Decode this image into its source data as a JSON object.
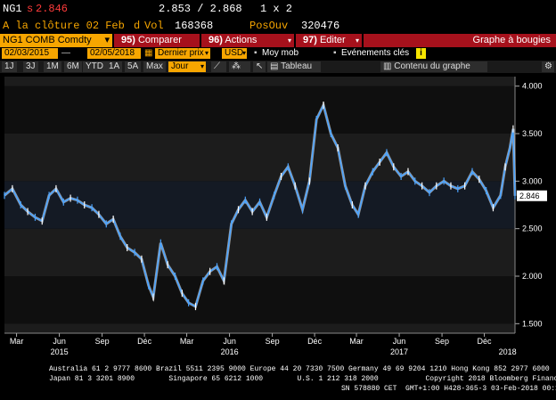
{
  "header": {
    "ticker": "NG1",
    "arrow": "s",
    "last": "2.846",
    "bid_ask": "2.853 / 2.868",
    "size": "1 x 2",
    "close_label": "A la clôture 02 Feb",
    "close_flag": "d",
    "vol_label": "Vol",
    "vol_value": "168368",
    "oi_label": "PosOuv",
    "oi_value": "320476"
  },
  "cmdbar": {
    "security": "NG1 COMB Comdty",
    "security_arrow": "▾",
    "compare_num": "95)",
    "compare_label": "Comparer",
    "actions_num": "96)",
    "actions_label": "Actions",
    "edit_num": "97)",
    "edit_label": "Editer",
    "chart_type": "Graphe à bougies"
  },
  "daterow": {
    "start_date": "02/03/2015",
    "end_date": "02/05/2018",
    "price_field": "Dernier prix",
    "currency": "USD",
    "moving_avg": "Moy mob",
    "events": "Evénements clés",
    "info_icon": "i"
  },
  "tabs": {
    "periods": [
      "1J",
      "3J",
      "1M",
      "6M",
      "YTD",
      "1A",
      "5A",
      "Max"
    ],
    "frequency": "Jour",
    "table": "Tableau",
    "content": "Contenu du graphe"
  },
  "chart_data": {
    "type": "line",
    "title": "",
    "xlabel": "",
    "ylabel": "",
    "ylim": [
      1.4,
      4.1
    ],
    "y_ticks": [
      1.5,
      2.0,
      2.5,
      3.0,
      3.5,
      4.0
    ],
    "y_tick_labels": [
      "1.500",
      "2.000",
      "2.500",
      "3.000",
      "3.500",
      "4.000"
    ],
    "xlim": [
      "2015-02-03",
      "2018-02-05"
    ],
    "x_ticks": [
      {
        "date": "2015-03-01",
        "label": "Mar"
      },
      {
        "date": "2015-06-01",
        "label": "Jun"
      },
      {
        "date": "2015-09-01",
        "label": "Sep"
      },
      {
        "date": "2015-12-01",
        "label": "Déc"
      },
      {
        "date": "2016-03-01",
        "label": "Mar"
      },
      {
        "date": "2016-06-01",
        "label": "Jun"
      },
      {
        "date": "2016-09-01",
        "label": "Sep"
      },
      {
        "date": "2016-12-01",
        "label": "Déc"
      },
      {
        "date": "2017-03-01",
        "label": "Mar"
      },
      {
        "date": "2017-06-01",
        "label": "Jun"
      },
      {
        "date": "2017-09-01",
        "label": "Sep"
      },
      {
        "date": "2017-12-01",
        "label": "Déc"
      }
    ],
    "year_labels": [
      {
        "date": "2015-06-01",
        "label": "2015"
      },
      {
        "date": "2016-06-01",
        "label": "2016"
      },
      {
        "date": "2017-06-01",
        "label": "2017"
      },
      {
        "date": "2018-01-20",
        "label": "2018"
      }
    ],
    "last_value": 2.846,
    "last_value_label": "2.846",
    "series": [
      {
        "x": [
          "2015-02-03",
          "2015-02-20",
          "2015-03-10",
          "2015-03-25",
          "2015-04-10",
          "2015-04-25",
          "2015-05-10",
          "2015-05-25",
          "2015-06-10",
          "2015-06-25",
          "2015-07-10",
          "2015-07-25",
          "2015-08-10",
          "2015-08-25",
          "2015-09-10",
          "2015-09-25",
          "2015-10-10",
          "2015-10-25",
          "2015-11-10",
          "2015-11-25",
          "2015-12-10",
          "2015-12-20",
          "2016-01-05",
          "2016-01-20",
          "2016-02-05",
          "2016-02-20",
          "2016-03-05",
          "2016-03-20",
          "2016-04-05",
          "2016-04-20",
          "2016-05-05",
          "2016-05-20",
          "2016-06-05",
          "2016-06-20",
          "2016-07-05",
          "2016-07-20",
          "2016-08-05",
          "2016-08-20",
          "2016-09-05",
          "2016-09-20",
          "2016-10-05",
          "2016-10-20",
          "2016-11-05",
          "2016-11-20",
          "2016-12-05",
          "2016-12-20",
          "2017-01-05",
          "2017-01-20",
          "2017-02-05",
          "2017-02-20",
          "2017-03-05",
          "2017-03-20",
          "2017-04-05",
          "2017-04-20",
          "2017-05-05",
          "2017-05-20",
          "2017-06-05",
          "2017-06-20",
          "2017-07-05",
          "2017-07-20",
          "2017-08-05",
          "2017-08-20",
          "2017-09-05",
          "2017-09-20",
          "2017-10-05",
          "2017-10-20",
          "2017-11-05",
          "2017-11-20",
          "2017-12-05",
          "2017-12-20",
          "2018-01-05",
          "2018-01-15",
          "2018-01-25",
          "2018-02-01",
          "2018-02-05"
        ],
        "values": [
          2.85,
          2.92,
          2.75,
          2.68,
          2.62,
          2.58,
          2.85,
          2.92,
          2.78,
          2.82,
          2.8,
          2.75,
          2.72,
          2.65,
          2.55,
          2.6,
          2.42,
          2.3,
          2.25,
          2.18,
          1.9,
          1.78,
          2.35,
          2.12,
          2.0,
          1.82,
          1.72,
          1.68,
          1.95,
          2.05,
          2.1,
          1.95,
          2.55,
          2.7,
          2.8,
          2.68,
          2.78,
          2.62,
          2.85,
          3.05,
          3.15,
          2.95,
          2.7,
          3.0,
          3.65,
          3.8,
          3.5,
          3.35,
          2.95,
          2.75,
          2.65,
          2.95,
          3.1,
          3.2,
          3.3,
          3.15,
          3.05,
          3.1,
          3.0,
          2.95,
          2.88,
          2.95,
          3.0,
          2.95,
          2.92,
          2.95,
          3.1,
          3.02,
          2.9,
          2.72,
          2.85,
          3.15,
          3.35,
          3.55,
          2.846
        ]
      }
    ]
  },
  "footer": {
    "line1": "Australia 61 2 9777 8600 Brazil 5511 2395 9000 Europe 44 20 7330 7500 Germany 49 69 9204 1210 Hong Kong 852 2977 6000",
    "line2": "Japan 81 3 3201 8900        Singapore 65 6212 1000        U.S. 1 212 318 2000           Copyright 2018 Bloomberg Finance L.P.",
    "line3": "SN 578880 CET  GMT+1:00 H428-365-3 03-Feb-2018 00:15:04"
  },
  "colors": {
    "accent": "#f7a600",
    "bar_red": "#a6111c",
    "series": "#4aa3ff",
    "background": "#000000"
  }
}
